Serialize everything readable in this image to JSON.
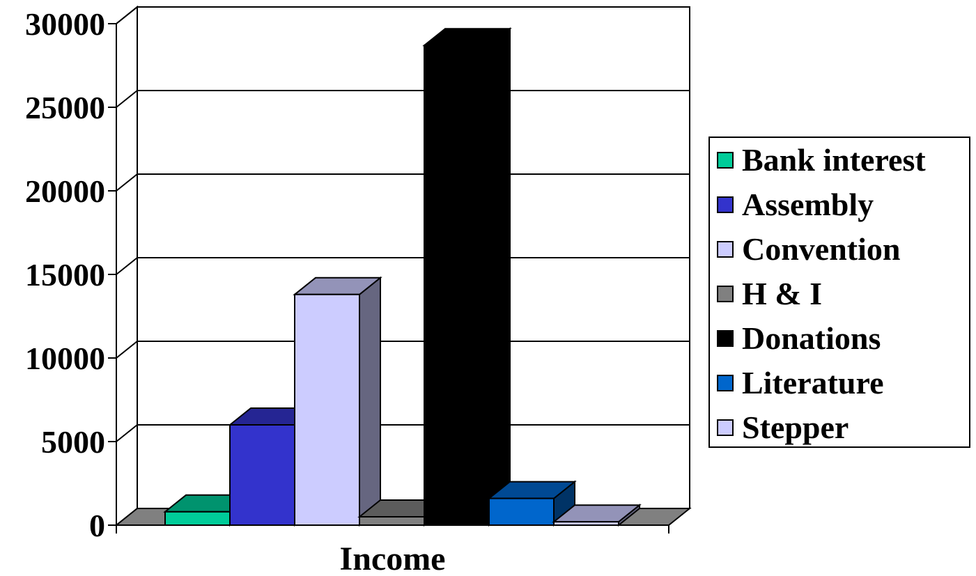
{
  "chart_data": {
    "type": "bar",
    "categories": [
      "Income"
    ],
    "series": [
      {
        "name": "Bank interest",
        "values": [
          800
        ],
        "color": "#00CC99"
      },
      {
        "name": "Assembly",
        "values": [
          6000
        ],
        "color": "#3333CC"
      },
      {
        "name": "Convention",
        "values": [
          13800
        ],
        "color": "#CCCCFF"
      },
      {
        "name": "H & I",
        "values": [
          500
        ],
        "color": "#808080"
      },
      {
        "name": "Donations",
        "values": [
          28700
        ],
        "color": "#000000"
      },
      {
        "name": "Literature",
        "values": [
          1600
        ],
        "color": "#0066CC"
      },
      {
        "name": "Stepper",
        "values": [
          200
        ],
        "color": "#CCCCFF"
      }
    ],
    "ylim": [
      0,
      30000
    ],
    "yticks": [
      "0",
      "5000",
      "10000",
      "15000",
      "20000",
      "25000",
      "30000"
    ],
    "grid": true,
    "legend_position": "right"
  }
}
